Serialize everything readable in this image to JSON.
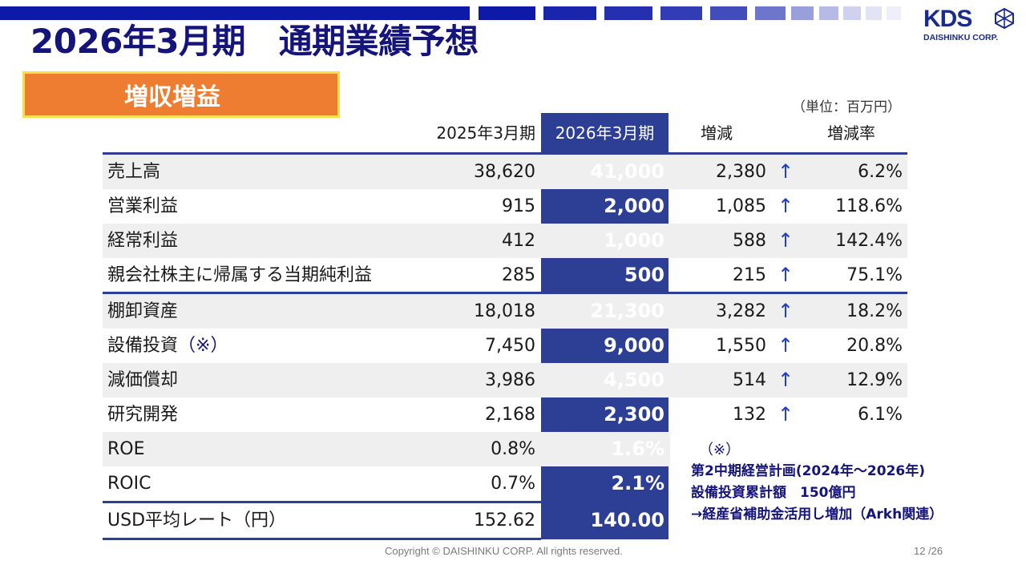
{
  "header": {
    "title": "2026年3月期　通期業績予想",
    "badge": "増収増益",
    "bar_color": "#0d1aa8",
    "badge_color": "#ee7d31"
  },
  "logo": {
    "wordmark": "KDS",
    "subtitle": "DAISHINKU CORP."
  },
  "table": {
    "unit_note": "（単位：百万円）",
    "columns": [
      "2025年3月期",
      "2026年3月期",
      "増減",
      "増減率"
    ],
    "highlight_color": "#2d3f95",
    "rows": [
      {
        "label": "売上高",
        "prev": "38,620",
        "cur": "41,000",
        "change": "2,380",
        "arrow": "↑",
        "rate": "6.2%"
      },
      {
        "label": "営業利益",
        "prev": "915",
        "cur": "2,000",
        "change": "1,085",
        "arrow": "↑",
        "rate": "118.6%"
      },
      {
        "label": "経常利益",
        "prev": "412",
        "cur": "1,000",
        "change": "588",
        "arrow": "↑",
        "rate": "142.4%"
      },
      {
        "label": "親会社株主に帰属する当期純利益",
        "prev": "285",
        "cur": "500",
        "change": "215",
        "arrow": "↑",
        "rate": "75.1%"
      },
      {
        "label": "棚卸資産",
        "prev": "18,018",
        "cur": "21,300",
        "change": "3,282",
        "arrow": "↑",
        "rate": "18.2%"
      },
      {
        "label": "設備投資",
        "label_note": "（※）",
        "prev": "7,450",
        "cur": "9,000",
        "change": "1,550",
        "arrow": "↑",
        "rate": "20.8%"
      },
      {
        "label": "減価償却",
        "prev": "3,986",
        "cur": "4,500",
        "change": "514",
        "arrow": "↑",
        "rate": "12.9%"
      },
      {
        "label": "研究開発",
        "prev": "2,168",
        "cur": "2,300",
        "change": "132",
        "arrow": "↑",
        "rate": "6.1%"
      },
      {
        "label": "ROE",
        "prev": "0.8%",
        "cur": "1.6%"
      },
      {
        "label": "ROIC",
        "prev": "0.7%",
        "cur": "2.1%"
      },
      {
        "label": "USD平均レート（円）",
        "prev": "152.62",
        "cur": "140.00"
      }
    ]
  },
  "note": {
    "mark": "（※）",
    "lines": [
      "第2中期経営計画(2024年～2026年)",
      "設備投資累計額　150億円",
      "→経産省補助金活用し増加（Arkh関連）"
    ]
  },
  "footer": {
    "copyright": "Copyright © DAISHINKU CORP. All rights reserved.",
    "page": "12 /26"
  }
}
